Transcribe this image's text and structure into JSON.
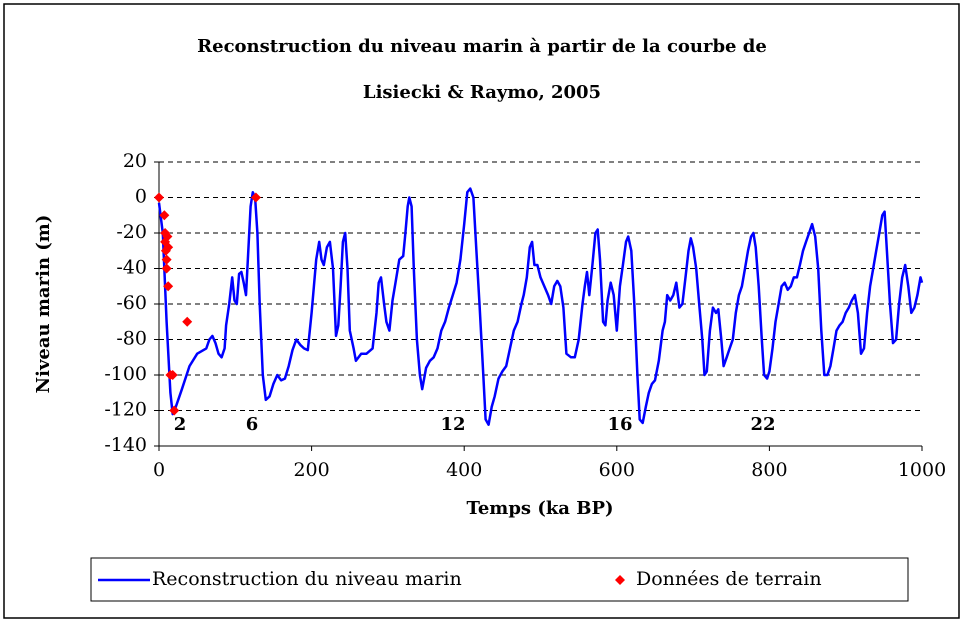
{
  "chart_data": {
    "type": "line",
    "title": [
      "Reconstruction du niveau marin à partir de la courbe de",
      "Lisiecki & Raymo, 2005"
    ],
    "x_label": "Temps (ka BP)",
    "y_label": "Niveau marin (m)",
    "xlim": [
      0,
      1000
    ],
    "xticks": [
      0,
      200,
      400,
      600,
      800,
      1000
    ],
    "ylim": [
      -140,
      20
    ],
    "yticks": [
      20,
      0,
      -20,
      -40,
      -60,
      -80,
      -100,
      -120,
      -140
    ],
    "grid": true,
    "legend": "bottom",
    "annotations": [
      "2",
      "6",
      "12",
      "16",
      "22"
    ],
    "series": [
      {
        "name": "Reconstruction du niveau marin",
        "color": "#0000ff",
        "type": "line",
        "x": [
          0,
          5,
          10,
          15,
          18,
          22,
          30,
          40,
          50,
          62,
          66,
          70,
          74,
          78,
          82,
          86,
          88,
          92,
          96,
          99,
          102,
          105,
          108,
          111,
          114,
          117,
          120,
          123,
          126,
          129,
          132,
          136,
          140,
          145,
          150,
          155,
          160,
          165,
          170,
          175,
          180,
          185,
          190,
          195,
          200,
          203,
          206,
          210,
          213,
          216,
          220,
          224,
          228,
          232,
          235,
          238,
          241,
          244,
          247,
          250,
          255,
          258,
          265,
          272,
          280,
          285,
          288,
          291,
          295,
          298,
          302,
          306,
          310,
          315,
          320,
          323,
          326,
          328,
          331,
          334,
          338,
          342,
          345,
          350,
          355,
          360,
          365,
          370,
          375,
          380,
          385,
          390,
          395,
          400,
          404,
          408,
          412,
          416,
          420,
          425,
          428,
          432,
          436,
          440,
          445,
          450,
          455,
          460,
          465,
          470,
          475,
          478,
          482,
          486,
          489,
          492,
          496,
          500,
          505,
          510,
          514,
          518,
          522,
          526,
          530,
          534,
          540,
          545,
          550,
          555,
          558,
          561,
          564,
          568,
          572,
          575,
          578,
          582,
          585,
          588,
          592,
          596,
          600,
          604,
          608,
          612,
          615,
          619,
          623,
          627,
          630,
          634,
          638,
          642,
          646,
          650,
          655,
          660,
          663,
          666,
          670,
          674,
          678,
          682,
          686,
          690,
          694,
          697,
          700,
          704,
          708,
          712,
          715,
          718,
          722,
          726,
          730,
          733,
          737,
          740,
          744,
          748,
          752,
          756,
          760,
          764,
          768,
          772,
          776,
          779,
          782,
          786,
          790,
          793,
          797,
          800,
          804,
          808,
          812,
          816,
          820,
          824,
          828,
          832,
          836,
          840,
          844,
          848,
          852,
          856,
          860,
          864,
          868,
          872,
          876,
          880,
          884,
          888,
          892,
          896,
          900,
          904,
          908,
          912,
          916,
          920,
          924,
          928,
          932,
          936,
          940,
          944,
          948,
          951,
          954,
          958,
          962,
          966,
          970,
          974,
          978,
          982,
          986,
          990,
          994,
          998,
          1000
        ],
        "values": [
          -3,
          -20,
          -70,
          -110,
          -122,
          -118,
          -108,
          -95,
          -88,
          -85,
          -80,
          -78,
          -82,
          -88,
          -90,
          -85,
          -72,
          -60,
          -45,
          -58,
          -60,
          -43,
          -42,
          -48,
          -55,
          -30,
          -5,
          3,
          0,
          -20,
          -60,
          -100,
          -114,
          -112,
          -105,
          -100,
          -103,
          -102,
          -95,
          -86,
          -80,
          -83,
          -85,
          -86,
          -65,
          -50,
          -35,
          -25,
          -35,
          -38,
          -28,
          -25,
          -40,
          -78,
          -72,
          -50,
          -25,
          -20,
          -40,
          -75,
          -85,
          -92,
          -88,
          -88,
          -85,
          -65,
          -48,
          -45,
          -60,
          -70,
          -75,
          -58,
          -48,
          -35,
          -33,
          -20,
          -5,
          0,
          -5,
          -40,
          -80,
          -100,
          -108,
          -96,
          -92,
          -90,
          -85,
          -75,
          -70,
          -62,
          -55,
          -48,
          -35,
          -15,
          3,
          5,
          0,
          -30,
          -60,
          -100,
          -125,
          -128,
          -118,
          -112,
          -102,
          -98,
          -95,
          -85,
          -75,
          -70,
          -60,
          -55,
          -45,
          -28,
          -25,
          -38,
          -38,
          -45,
          -50,
          -55,
          -60,
          -50,
          -47,
          -50,
          -62,
          -88,
          -90,
          -90,
          -80,
          -60,
          -50,
          -42,
          -55,
          -38,
          -20,
          -18,
          -35,
          -70,
          -72,
          -58,
          -48,
          -55,
          -75,
          -50,
          -38,
          -25,
          -22,
          -30,
          -60,
          -100,
          -125,
          -127,
          -118,
          -110,
          -105,
          -103,
          -92,
          -75,
          -70,
          -55,
          -58,
          -55,
          -48,
          -62,
          -60,
          -45,
          -30,
          -23,
          -28,
          -40,
          -60,
          -80,
          -100,
          -98,
          -75,
          -62,
          -65,
          -63,
          -80,
          -95,
          -90,
          -85,
          -80,
          -65,
          -55,
          -50,
          -40,
          -30,
          -22,
          -20,
          -28,
          -50,
          -80,
          -100,
          -102,
          -98,
          -85,
          -70,
          -60,
          -50,
          -48,
          -52,
          -50,
          -45,
          -45,
          -38,
          -30,
          -25,
          -20,
          -15,
          -22,
          -40,
          -75,
          -100,
          -100,
          -95,
          -85,
          -75,
          -72,
          -70,
          -65,
          -62,
          -58,
          -55,
          -65,
          -88,
          -85,
          -65,
          -50,
          -40,
          -30,
          -20,
          -10,
          -8,
          -30,
          -60,
          -82,
          -80,
          -60,
          -45,
          -38,
          -50,
          -65,
          -62,
          -55,
          -45,
          -48
        ]
      },
      {
        "name": "Données de terrain",
        "color": "#ff0000",
        "type": "scatter",
        "x": [
          0,
          7,
          8,
          8,
          9,
          10,
          11,
          12,
          10,
          12,
          15,
          18,
          20,
          37,
          127
        ],
        "values": [
          0,
          -10,
          -20,
          -25,
          -30,
          -35,
          -22,
          -28,
          -40,
          -50,
          -100,
          -100,
          -120,
          -70,
          0
        ]
      }
    ]
  }
}
